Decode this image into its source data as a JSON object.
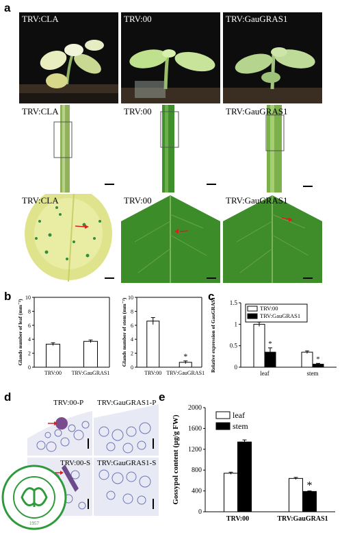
{
  "panel_letters": {
    "a": "a",
    "b": "b",
    "c": "c",
    "d": "d",
    "e": "e"
  },
  "panel_a": {
    "row1_labels": [
      "TRV:CLA",
      "TRV:00",
      "TRV:GauGRAS1"
    ],
    "row2_labels": [
      "TRV:CLA",
      "TRV:00",
      "TRV:GauGRAS1"
    ],
    "row3_labels": [
      "TRV:CLA",
      "TRV:00",
      "TRV:GauGRAS1"
    ]
  },
  "panel_d": {
    "labels": [
      "TRV:00-P",
      "TRV:GauGRAS1-P",
      "TRV:00-S",
      "TRV:GauGRAS1-S"
    ],
    "logo_year": "1957"
  },
  "chart_data": [
    {
      "id": "b-leaf",
      "type": "bar",
      "categories": [
        "TRV:00",
        "TRV:GauGRAS1"
      ],
      "values": [
        3.3,
        3.7
      ],
      "errors": [
        0.2,
        0.2
      ],
      "ylabel": "Glands number of leaf (mm⁻²)",
      "ylim": [
        0,
        10
      ],
      "yticks": [
        0,
        2,
        4,
        6,
        8,
        10
      ],
      "bar_colors": [
        "#ffffff",
        "#ffffff"
      ],
      "significance": [
        "",
        ""
      ]
    },
    {
      "id": "b-stem",
      "type": "bar",
      "categories": [
        "TRV:00",
        "TRV:GauGRAS1"
      ],
      "values": [
        6.6,
        0.7
      ],
      "errors": [
        0.5,
        0.2
      ],
      "ylabel": "Glands number of stem (mm⁻²)",
      "ylim": [
        0,
        10
      ],
      "yticks": [
        0,
        2,
        4,
        6,
        8,
        10
      ],
      "bar_colors": [
        "#ffffff",
        "#ffffff"
      ],
      "significance": [
        "",
        "*"
      ]
    },
    {
      "id": "c",
      "type": "bar",
      "categories": [
        "leaf",
        "stem"
      ],
      "series": [
        {
          "name": "TRV:00",
          "values": [
            1.0,
            0.35
          ],
          "errors": [
            0.05,
            0.03
          ],
          "color": "#ffffff"
        },
        {
          "name": "TRV:GauGRAS1",
          "values": [
            0.35,
            0.07
          ],
          "errors": [
            0.1,
            0.02
          ],
          "color": "#000000"
        }
      ],
      "ylabel": "Relative expression of GauGRAS1",
      "ylim": [
        0,
        1.5
      ],
      "yticks": [
        "0",
        "0.5",
        "1",
        "1.5"
      ],
      "significance": [
        [
          "",
          "*"
        ],
        [
          "",
          "*"
        ]
      ],
      "legend": "top-right"
    },
    {
      "id": "e",
      "type": "bar",
      "categories": [
        "TRV:00",
        "TRV:GauGRAS1"
      ],
      "series": [
        {
          "name": "leaf",
          "values": [
            740,
            640
          ],
          "errors": [
            20,
            20
          ],
          "color": "#ffffff"
        },
        {
          "name": "stem",
          "values": [
            1340,
            390
          ],
          "errors": [
            40,
            10
          ],
          "color": "#000000"
        }
      ],
      "ylabel": "Gossypol content (µg/g FW)",
      "ylim": [
        0,
        2000
      ],
      "yticks": [
        "0",
        "400",
        "800",
        "1200",
        "1600",
        "2000"
      ],
      "significance": [
        [
          "",
          ""
        ],
        [
          "",
          "*"
        ]
      ],
      "legend": "top-left"
    }
  ]
}
